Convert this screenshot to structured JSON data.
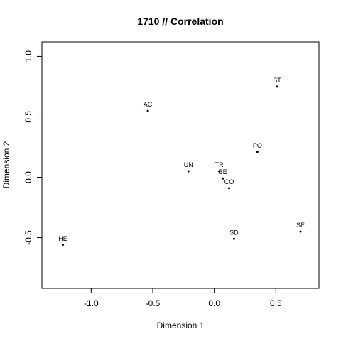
{
  "chart_data": {
    "type": "scatter",
    "title": "1710 // Correlation",
    "xlabel": "Dimension 1",
    "ylabel": "Dimension 2",
    "xlim": [
      -1.4,
      0.85
    ],
    "ylim": [
      -0.92,
      1.12
    ],
    "xticks": [
      {
        "value": -1.0,
        "label": "-1.0"
      },
      {
        "value": -0.5,
        "label": "-0.5"
      },
      {
        "value": 0.0,
        "label": "0.0"
      },
      {
        "value": 0.5,
        "label": "0.5"
      }
    ],
    "yticks": [
      {
        "value": -0.5,
        "label": "-0.5"
      },
      {
        "value": 0.0,
        "label": "0.0"
      },
      {
        "value": 0.5,
        "label": "0.5"
      },
      {
        "value": 1.0,
        "label": "1.0"
      }
    ],
    "grid": false,
    "points": [
      {
        "label": "ST",
        "x": 0.51,
        "y": 0.75
      },
      {
        "label": "AC",
        "x": -0.54,
        "y": 0.55
      },
      {
        "label": "PO",
        "x": 0.35,
        "y": 0.21
      },
      {
        "label": "UN",
        "x": -0.21,
        "y": 0.05
      },
      {
        "label": "TR",
        "x": 0.04,
        "y": 0.05
      },
      {
        "label": "BE",
        "x": 0.07,
        "y": -0.01
      },
      {
        "label": "CO",
        "x": 0.12,
        "y": -0.09
      },
      {
        "label": "SD",
        "x": 0.16,
        "y": -0.51
      },
      {
        "label": "SE",
        "x": 0.7,
        "y": -0.45
      },
      {
        "label": "HE",
        "x": -1.23,
        "y": -0.56
      }
    ]
  }
}
